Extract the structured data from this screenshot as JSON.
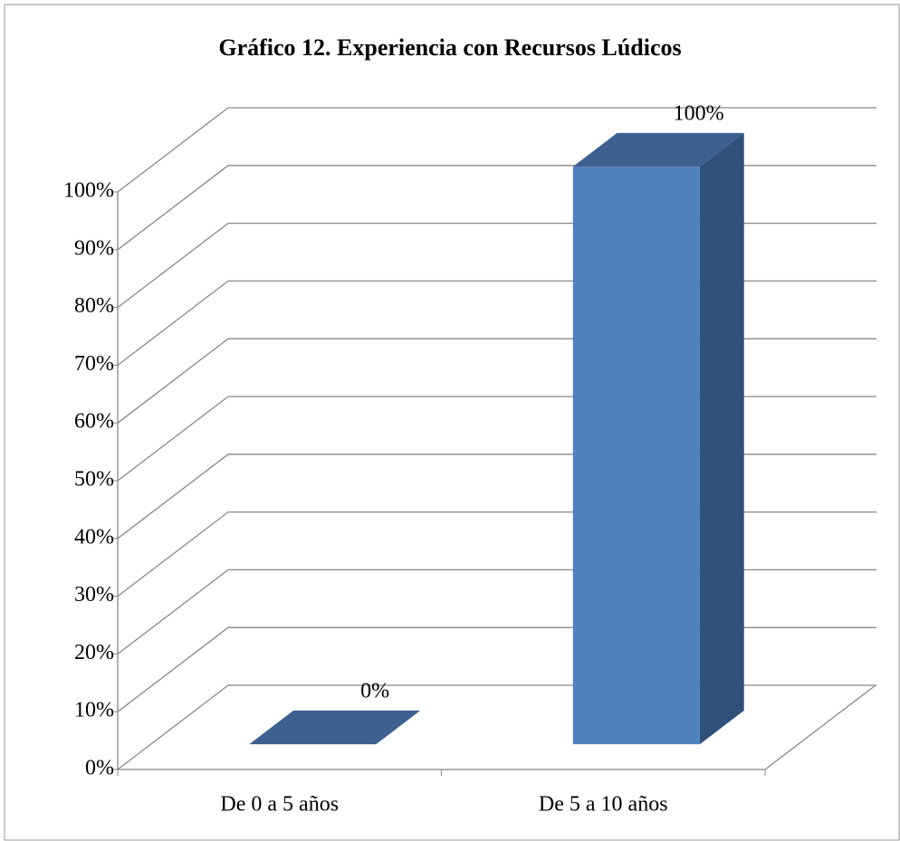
{
  "chart_data": {
    "type": "bar3d",
    "title": "Gráfico 12. Experiencia con Recursos Lúdicos",
    "categories": [
      "De 0 a 5 años",
      "De 5 a 10 años"
    ],
    "values": [
      0,
      100
    ],
    "value_labels": [
      "0%",
      "100%"
    ],
    "color": "#4f81bd",
    "ylim": [
      0,
      100
    ],
    "yticks": [
      {
        "value": 0,
        "label": "0%"
      },
      {
        "value": 10,
        "label": "10%"
      },
      {
        "value": 20,
        "label": "20%"
      },
      {
        "value": 30,
        "label": "30%"
      },
      {
        "value": 40,
        "label": "40%"
      },
      {
        "value": 50,
        "label": "50%"
      },
      {
        "value": 60,
        "label": "60%"
      },
      {
        "value": 70,
        "label": "70%"
      },
      {
        "value": 80,
        "label": "80%"
      },
      {
        "value": 90,
        "label": "90%"
      },
      {
        "value": 100,
        "label": "100%"
      }
    ],
    "grid": true
  }
}
